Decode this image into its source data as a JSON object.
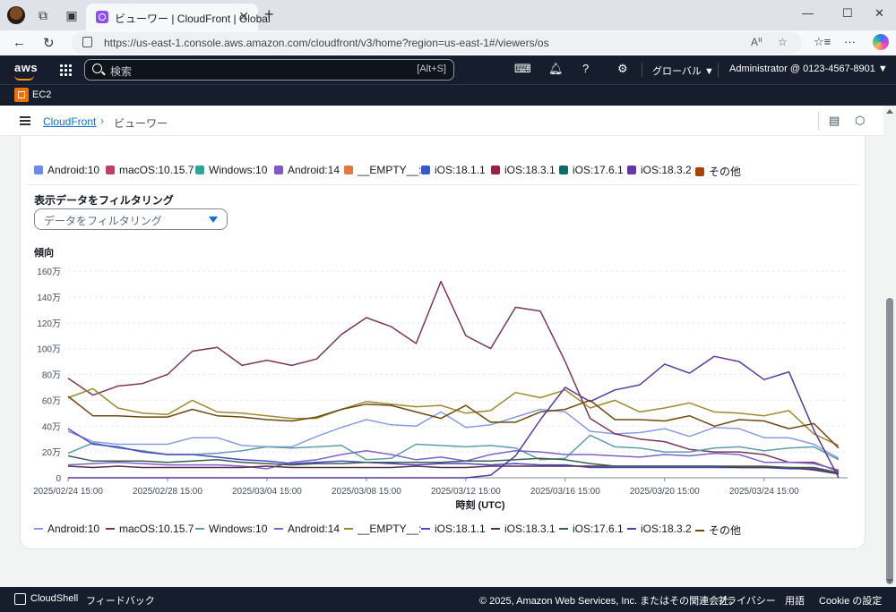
{
  "browser": {
    "tab_title": "ビューワー | CloudFront | Global",
    "url": "https://us-east-1.console.aws.amazon.com/cloudfront/v3/home?region=us-east-1#/viewers/os"
  },
  "aws_nav": {
    "logo": "aws",
    "search_placeholder": "検索",
    "search_shortcut": "[Alt+S]",
    "region": "グローバル ▼",
    "account": "Administrator @ 0123-4567-8901 ▼"
  },
  "service_bar": {
    "service": "EC2"
  },
  "breadcrumb": {
    "root": "CloudFront",
    "separator": "›",
    "current": "ビューワー"
  },
  "filter": {
    "label": "表示データをフィルタリング",
    "placeholder": "データをフィルタリング"
  },
  "legend_top": [
    {
      "label": "Android:10",
      "color": "#688ae8"
    },
    {
      "label": "macOS:10.15.7",
      "color": "#c33d69"
    },
    {
      "label": "Windows:10",
      "color": "#2ea597"
    },
    {
      "label": "Android:14",
      "color": "#8456ce"
    },
    {
      "label": "__EMPTY__:",
      "color": "#e07941"
    },
    {
      "label": "iOS:18.1.1",
      "color": "#3759ce"
    },
    {
      "label": "iOS:18.3.1",
      "color": "#962249"
    },
    {
      "label": "iOS:17.6.1",
      "color": "#096f64"
    },
    {
      "label": "iOS:18.3.2",
      "color": "#6237a7"
    },
    {
      "label": "その他",
      "color": "#a84401"
    }
  ],
  "trend_label": "傾向",
  "chart_data": {
    "type": "line",
    "xlabel": "時刻 (UTC)",
    "ylabel": "",
    "ylim": [
      0,
      1600000
    ],
    "y_ticks": [
      0,
      200000,
      400000,
      600000,
      800000,
      1000000,
      1200000,
      1400000,
      1600000
    ],
    "y_tick_labels": [
      "0",
      "20万",
      "40万",
      "60万",
      "80万",
      "100万",
      "120万",
      "140万",
      "160万"
    ],
    "x_tick_labels": [
      "2025/02/24 15:00",
      "2025/02/28 15:00",
      "2025/03/04 15:00",
      "2025/03/08 15:00",
      "2025/03/12 15:00",
      "2025/03/16 15:00",
      "2025/03/20 15:00",
      "2025/03/24 15:00"
    ],
    "x_ticks_index": [
      0,
      4,
      8,
      12,
      16,
      20,
      24,
      28
    ],
    "n_points": 32,
    "series": [
      {
        "name": "Android:10",
        "color": "#8a9be0",
        "values": [
          360000,
          280000,
          260000,
          260000,
          260000,
          310000,
          310000,
          250000,
          240000,
          240000,
          320000,
          390000,
          450000,
          410000,
          400000,
          510000,
          390000,
          410000,
          470000,
          530000,
          510000,
          360000,
          340000,
          350000,
          380000,
          320000,
          390000,
          380000,
          310000,
          310000,
          260000,
          150000
        ]
      },
      {
        "name": "macOS:10.15.7",
        "color": "#7a3856",
        "values": [
          770000,
          640000,
          710000,
          730000,
          800000,
          980000,
          1010000,
          870000,
          910000,
          870000,
          920000,
          1110000,
          1240000,
          1170000,
          1040000,
          1520000,
          1100000,
          1000000,
          1320000,
          1290000,
          900000,
          460000,
          340000,
          300000,
          280000,
          220000,
          200000,
          200000,
          180000,
          120000,
          120000,
          50000
        ]
      },
      {
        "name": "Windows:10",
        "color": "#5f9ea8",
        "values": [
          190000,
          270000,
          230000,
          210000,
          180000,
          180000,
          190000,
          210000,
          240000,
          230000,
          240000,
          250000,
          140000,
          150000,
          260000,
          250000,
          240000,
          250000,
          230000,
          140000,
          150000,
          330000,
          240000,
          230000,
          200000,
          200000,
          230000,
          240000,
          210000,
          230000,
          240000,
          140000
        ]
      },
      {
        "name": "Android:14",
        "color": "#7a63c9",
        "values": [
          100000,
          110000,
          120000,
          110000,
          100000,
          100000,
          100000,
          90000,
          70000,
          120000,
          140000,
          180000,
          210000,
          180000,
          140000,
          160000,
          130000,
          180000,
          210000,
          200000,
          180000,
          180000,
          170000,
          160000,
          180000,
          170000,
          190000,
          180000,
          120000,
          120000,
          110000,
          60000
        ]
      },
      {
        "name": "__EMPTY__:",
        "color": "#9c8a32",
        "values": [
          620000,
          690000,
          540000,
          500000,
          490000,
          600000,
          510000,
          500000,
          480000,
          460000,
          460000,
          530000,
          590000,
          570000,
          550000,
          560000,
          500000,
          520000,
          660000,
          620000,
          680000,
          540000,
          600000,
          510000,
          540000,
          580000,
          510000,
          500000,
          480000,
          520000,
          340000,
          250000
        ]
      },
      {
        "name": "iOS:18.1.1",
        "color": "#4a47c4",
        "values": [
          380000,
          260000,
          240000,
          200000,
          180000,
          180000,
          160000,
          140000,
          130000,
          110000,
          120000,
          130000,
          120000,
          110000,
          100000,
          110000,
          110000,
          100000,
          110000,
          100000,
          100000,
          80000,
          80000,
          80000,
          80000,
          80000,
          80000,
          80000,
          80000,
          70000,
          70000,
          40000
        ]
      },
      {
        "name": "iOS:18.3.1",
        "color": "#5b2f47",
        "values": [
          90000,
          80000,
          90000,
          80000,
          80000,
          80000,
          80000,
          80000,
          90000,
          80000,
          80000,
          80000,
          80000,
          80000,
          90000,
          80000,
          80000,
          90000,
          90000,
          90000,
          90000,
          90000,
          90000,
          90000,
          90000,
          90000,
          90000,
          80000,
          80000,
          80000,
          60000,
          30000
        ]
      },
      {
        "name": "iOS:17.6.1",
        "color": "#3b5f4f",
        "values": [
          170000,
          130000,
          130000,
          130000,
          120000,
          130000,
          140000,
          120000,
          110000,
          100000,
          110000,
          110000,
          120000,
          120000,
          120000,
          120000,
          130000,
          130000,
          140000,
          150000,
          140000,
          110000,
          90000,
          90000,
          90000,
          90000,
          90000,
          90000,
          90000,
          80000,
          80000,
          40000
        ]
      },
      {
        "name": "iOS:18.3.2",
        "color": "#5a3a9a",
        "values": [
          0,
          0,
          0,
          0,
          0,
          0,
          0,
          0,
          0,
          0,
          0,
          0,
          0,
          0,
          0,
          0,
          0,
          20000,
          170000,
          450000,
          700000,
          590000,
          680000,
          720000,
          880000,
          810000,
          940000,
          900000,
          760000,
          820000,
          370000,
          0
        ]
      },
      {
        "name": "その他",
        "color": "#6b4a12",
        "values": [
          630000,
          480000,
          480000,
          470000,
          470000,
          530000,
          480000,
          470000,
          450000,
          440000,
          470000,
          530000,
          570000,
          560000,
          510000,
          460000,
          560000,
          430000,
          430000,
          510000,
          530000,
          600000,
          450000,
          450000,
          440000,
          480000,
          400000,
          450000,
          440000,
          380000,
          420000,
          230000
        ]
      }
    ],
    "legend_placement": "bottom",
    "grid": true
  },
  "legend_bottom": [
    {
      "label": "Android:10",
      "color": "#8a9be0"
    },
    {
      "label": "macOS:10.15.7",
      "color": "#7a3856"
    },
    {
      "label": "Windows:10",
      "color": "#5f9ea8"
    },
    {
      "label": "Android:14",
      "color": "#7a63c9"
    },
    {
      "label": "__EMPTY__:",
      "color": "#9c8a32"
    },
    {
      "label": "iOS:18.1.1",
      "color": "#4a47c4"
    },
    {
      "label": "iOS:18.3.1",
      "color": "#5b2f47"
    },
    {
      "label": "iOS:17.6.1",
      "color": "#3b5f4f"
    },
    {
      "label": "iOS:18.3.2",
      "color": "#5a3a9a"
    },
    {
      "label": "その他",
      "color": "#6b4a12"
    }
  ],
  "footer": {
    "cloudshell": "CloudShell",
    "feedback": "フィードバック",
    "copyright": "© 2025, Amazon Web Services, Inc. またはその関連会社。",
    "privacy": "プライバシー",
    "terms": "用語",
    "cookie": "Cookie の設定"
  }
}
